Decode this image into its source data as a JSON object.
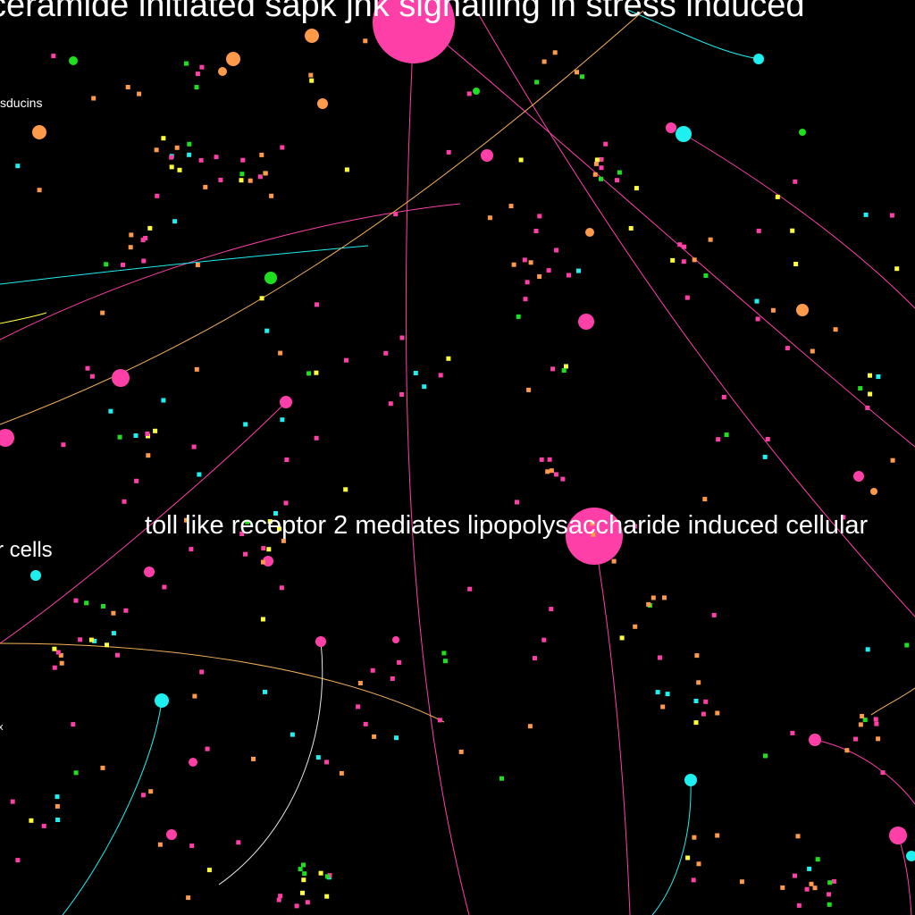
{
  "graph": {
    "background_color": "#000000",
    "label_color": "#ffffff",
    "palette": {
      "pink": "#ff3fa8",
      "cyan": "#1ef0f0",
      "orange": "#ff9a4a",
      "green": "#1ee01e",
      "yellow": "#ffff3a",
      "peach": "#f7b35a"
    },
    "labels": [
      {
        "id": "ceramide",
        "text": "ceramide initiated sapk jnk signalling in stress induced"
      },
      {
        "id": "tlr2",
        "text": "toll like receptor 2 mediates lipopolysaccharide induced cellular"
      },
      {
        "id": "cells",
        "text": "r cells"
      },
      {
        "id": "sducins",
        "text": "sducins"
      },
      {
        "id": "edge-x",
        "text": "x"
      }
    ]
  }
}
